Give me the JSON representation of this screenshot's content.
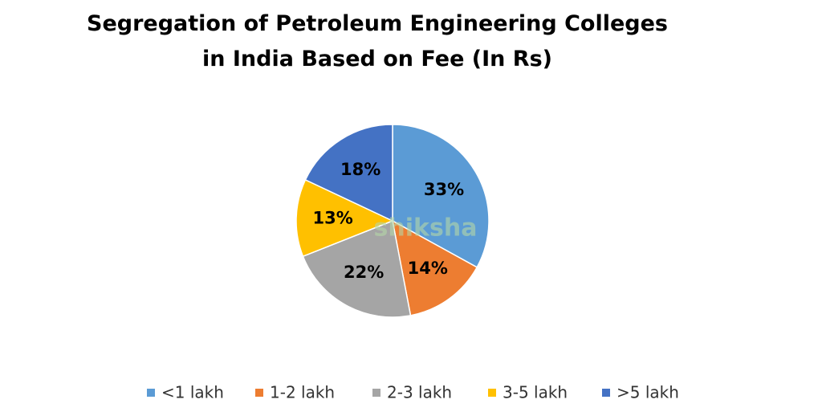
{
  "chart_data": {
    "type": "pie",
    "title": "Segregation of Petroleum Engineering Colleges in India Based on Fee (In Rs)",
    "watermark": "shiksha",
    "categories": [
      "<1 lakh",
      "1-2 lakh",
      "2-3 lakh",
      "3-5 lakh",
      ">5 lakh"
    ],
    "values": [
      33,
      14,
      22,
      13,
      18
    ],
    "value_labels": [
      "33%",
      "14%",
      "22%",
      "13%",
      "18%"
    ],
    "colors": [
      "#5b9bd5",
      "#ed7d31",
      "#a5a5a5",
      "#ffc000",
      "#4472c4"
    ],
    "legend": "bottom"
  }
}
